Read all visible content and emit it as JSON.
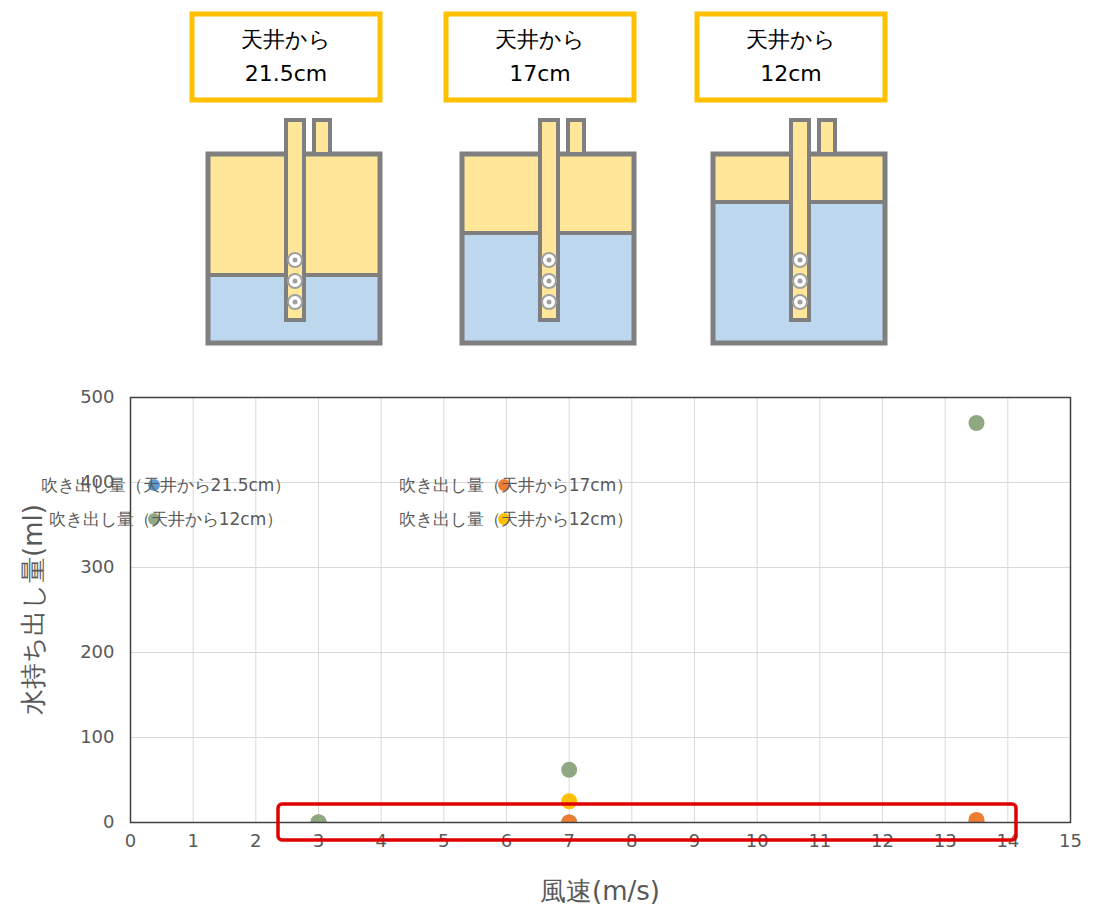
{
  "diagram": {
    "panels": [
      {
        "label_lines": [
          "天井から",
          "21.5cm"
        ]
      },
      {
        "label_lines": [
          "天井から",
          "17cm"
        ]
      },
      {
        "label_lines": [
          "天井から",
          "12cm"
        ]
      }
    ]
  },
  "chart_data": {
    "type": "scatter",
    "x_label": "風速(m/s)",
    "y_label": "水持ち出し量(ml)",
    "x": [
      3,
      7,
      13.5
    ],
    "series": [
      {
        "name": "吹き出し量（天井から21.5cm）",
        "color": "#5b9bd5",
        "marker": "circle",
        "values": [
          0,
          0,
          0
        ]
      },
      {
        "name": "吹き出し量（天井から17cm）",
        "color": "#ed7d31",
        "marker": "circle",
        "values": [
          0,
          0,
          3
        ]
      },
      {
        "name": "吹き出し量（天井から12cm）",
        "color": "#8fa882",
        "marker": "circle",
        "values": [
          0,
          62,
          470
        ]
      },
      {
        "name": "吹き出し量（天井から12cm）",
        "color": "#ffc000",
        "marker": "circle",
        "values": [
          null,
          25,
          null
        ]
      }
    ],
    "xlim": [
      0,
      15
    ],
    "xticks": [
      0,
      1,
      2,
      3,
      4,
      5,
      6,
      7,
      8,
      9,
      10,
      11,
      12,
      13,
      14,
      15
    ],
    "ylim": [
      0,
      500
    ],
    "yticks": [
      0,
      100,
      200,
      300,
      400,
      500
    ],
    "grid": true,
    "legend": "upper left"
  }
}
